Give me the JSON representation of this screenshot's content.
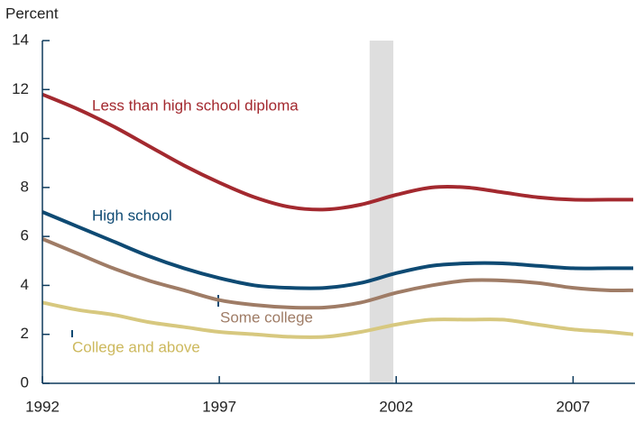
{
  "chart_data": {
    "type": "line",
    "y_label": "Percent",
    "x": [
      1992,
      1993,
      1994,
      1995,
      1996,
      1997,
      1998,
      1999,
      2000,
      2001,
      2002,
      2003,
      2004,
      2005,
      2006,
      2007,
      2008,
      2008.7
    ],
    "series": [
      {
        "name": "Less than high school diploma",
        "color": "#a3292f",
        "values": [
          11.8,
          11.2,
          10.5,
          9.7,
          8.9,
          8.2,
          7.6,
          7.2,
          7.1,
          7.3,
          7.7,
          8.0,
          8.0,
          7.8,
          7.6,
          7.5,
          7.5,
          7.5
        ]
      },
      {
        "name": "High school",
        "color": "#0e4a73",
        "values": [
          7.0,
          6.4,
          5.8,
          5.2,
          4.7,
          4.3,
          4.0,
          3.9,
          3.9,
          4.1,
          4.5,
          4.8,
          4.9,
          4.9,
          4.8,
          4.7,
          4.7,
          4.7
        ]
      },
      {
        "name": "Some college",
        "color": "#9f7c66",
        "values": [
          5.9,
          5.3,
          4.7,
          4.2,
          3.8,
          3.4,
          3.2,
          3.1,
          3.1,
          3.3,
          3.7,
          4.0,
          4.2,
          4.2,
          4.1,
          3.9,
          3.8,
          3.8
        ]
      },
      {
        "name": "College and above",
        "color": "#d7c87f",
        "values": [
          3.3,
          3.0,
          2.8,
          2.5,
          2.3,
          2.1,
          2.0,
          1.9,
          1.9,
          2.1,
          2.4,
          2.6,
          2.6,
          2.6,
          2.4,
          2.2,
          2.1,
          2.0
        ]
      }
    ],
    "recession": [
      2001.25,
      2001.92
    ],
    "xlim": [
      1992,
      2008.75
    ],
    "xticks": [
      1992,
      1997,
      2002,
      2007
    ],
    "ylim": [
      0,
      14
    ],
    "yticks": [
      0,
      2,
      4,
      6,
      8,
      10,
      12,
      14
    ]
  }
}
